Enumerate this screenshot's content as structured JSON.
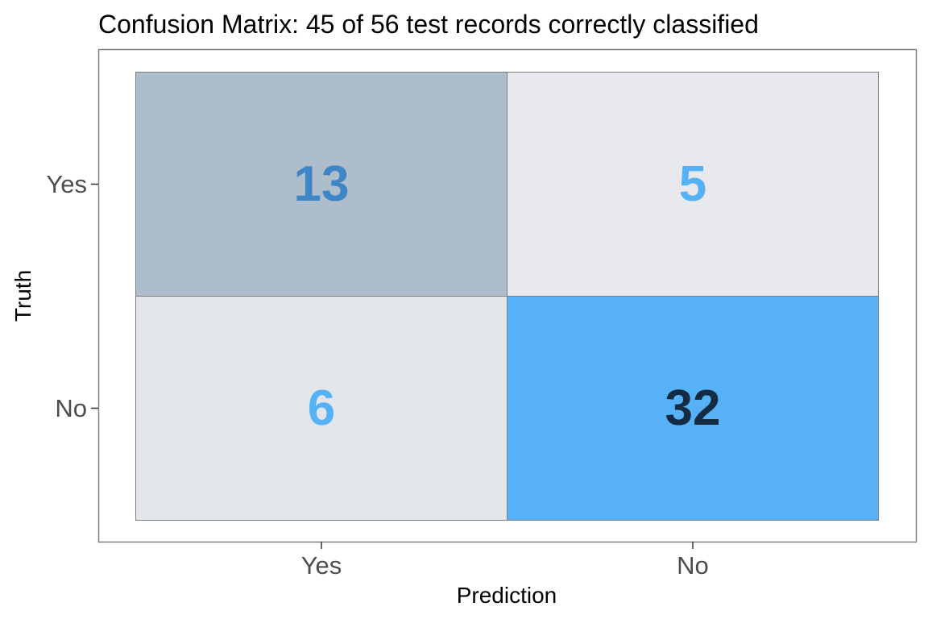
{
  "chart_data": {
    "type": "heatmap",
    "title": "Confusion Matrix: 45 of 56 test records correctly classified",
    "xlabel": "Prediction",
    "ylabel": "Truth",
    "x_categories": [
      "Yes",
      "No"
    ],
    "y_categories": [
      "Yes",
      "No"
    ],
    "cells": [
      {
        "truth": "Yes",
        "prediction": "Yes",
        "value": 13,
        "fill": "#AEBDCB",
        "text_color": "#3E86C6"
      },
      {
        "truth": "Yes",
        "prediction": "No",
        "value": 5,
        "fill": "#E7E9ED",
        "text_color": "#56B1F7"
      },
      {
        "truth": "No",
        "prediction": "Yes",
        "value": 6,
        "fill": "#E2E5EA",
        "text_color": "#56B1F7"
      },
      {
        "truth": "No",
        "prediction": "No",
        "value": 32,
        "fill": "#56B1F7",
        "text_color": "#132B43"
      }
    ],
    "grid": false,
    "legend": "none",
    "colors": {
      "panel_border": "#7F7F7F",
      "tile_border": "#7F7F7F",
      "tick_label": "#4D4D4D",
      "axis_title": "#000000"
    }
  }
}
